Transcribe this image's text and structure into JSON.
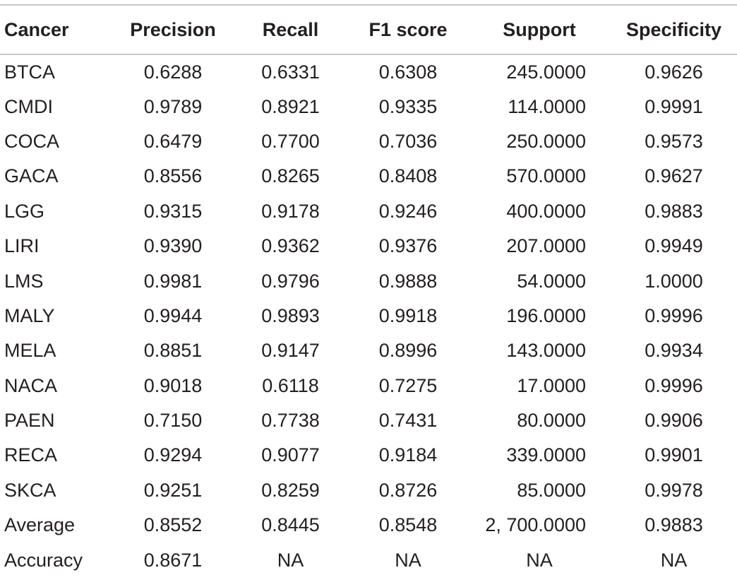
{
  "table": {
    "headers": [
      "Cancer",
      "Precision",
      "Recall",
      "F1 score",
      "Support",
      "Specificity"
    ],
    "rows": [
      [
        "BTCA",
        "0.6288",
        "0.6331",
        "0.6308",
        "245.0000",
        "0.9626"
      ],
      [
        "CMDI",
        "0.9789",
        "0.8921",
        "0.9335",
        "114.0000",
        "0.9991"
      ],
      [
        "COCA",
        "0.6479",
        "0.7700",
        "0.7036",
        "250.0000",
        "0.9573"
      ],
      [
        "GACA",
        "0.8556",
        "0.8265",
        "0.8408",
        "570.0000",
        "0.9627"
      ],
      [
        "LGG",
        "0.9315",
        "0.9178",
        "0.9246",
        "400.0000",
        "0.9883"
      ],
      [
        "LIRI",
        "0.9390",
        "0.9362",
        "0.9376",
        "207.0000",
        "0.9949"
      ],
      [
        "LMS",
        "0.9981",
        "0.9796",
        "0.9888",
        "54.0000",
        "1.0000"
      ],
      [
        "MALY",
        "0.9944",
        "0.9893",
        "0.9918",
        "196.0000",
        "0.9996"
      ],
      [
        "MELA",
        "0.8851",
        "0.9147",
        "0.8996",
        "143.0000",
        "0.9934"
      ],
      [
        "NACA",
        "0.9018",
        "0.6118",
        "0.7275",
        "17.0000",
        "0.9996"
      ],
      [
        "PAEN",
        "0.7150",
        "0.7738",
        "0.7431",
        "80.0000",
        "0.9906"
      ],
      [
        "RECA",
        "0.9294",
        "0.9077",
        "0.9184",
        "339.0000",
        "0.9901"
      ],
      [
        "SKCA",
        "0.9251",
        "0.8259",
        "0.8726",
        "85.0000",
        "0.9978"
      ],
      [
        "Average",
        "0.8552",
        "0.8445",
        "0.8548",
        "2, 700.0000",
        "0.9883"
      ],
      [
        "Accuracy",
        "0.8671",
        "NA",
        "NA",
        "NA",
        "NA"
      ]
    ]
  },
  "colors": {
    "text": "#231f20",
    "rule": "#c8c8c8",
    "background": "#ffffff"
  }
}
